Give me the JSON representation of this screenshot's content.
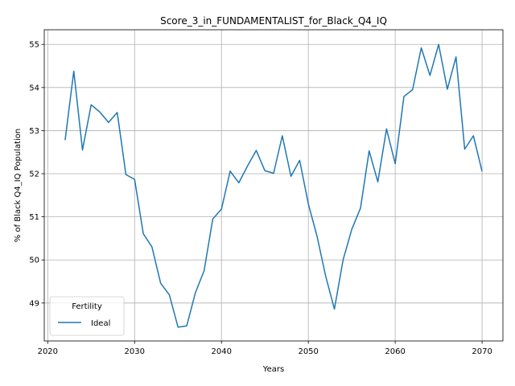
{
  "chart_data": {
    "type": "line",
    "title": "Score_3_in_FUNDAMENTALIST_for_Black_Q4_IQ",
    "xlabel": "Years",
    "ylabel": "% of Black Q4_IQ Population",
    "xlim": [
      2019.6,
      2072.4
    ],
    "ylim": [
      48.12,
      55.34
    ],
    "xticks": [
      2020,
      2030,
      2040,
      2050,
      2060,
      2070
    ],
    "yticks": [
      49,
      50,
      51,
      52,
      53,
      54,
      55
    ],
    "grid": true,
    "legend": {
      "title": "Fertility",
      "placement": "lower-left"
    },
    "series": [
      {
        "name": "Ideal",
        "color": "#1f77b4",
        "x": [
          2022,
          2023,
          2024,
          2025,
          2026,
          2027,
          2028,
          2029,
          2030,
          2031,
          2032,
          2033,
          2034,
          2035,
          2036,
          2037,
          2038,
          2039,
          2040,
          2041,
          2042,
          2043,
          2044,
          2045,
          2046,
          2047,
          2048,
          2049,
          2050,
          2051,
          2052,
          2053,
          2054,
          2055,
          2056,
          2057,
          2058,
          2059,
          2060,
          2061,
          2062,
          2063,
          2064,
          2065,
          2066,
          2067,
          2068,
          2069,
          2070
        ],
        "values": [
          52.78,
          54.38,
          52.55,
          53.6,
          53.43,
          53.19,
          53.42,
          51.98,
          51.87,
          50.61,
          50.3,
          49.46,
          49.19,
          48.44,
          48.47,
          49.24,
          49.75,
          50.95,
          51.18,
          52.06,
          51.79,
          52.18,
          52.54,
          52.07,
          52.01,
          52.88,
          51.94,
          52.31,
          51.3,
          50.55,
          49.62,
          48.86,
          50.0,
          50.71,
          51.2,
          52.53,
          51.81,
          53.04,
          52.23,
          53.79,
          53.95,
          54.92,
          54.28,
          55.0,
          53.96,
          54.71,
          52.57,
          52.88,
          52.05
        ]
      }
    ]
  }
}
